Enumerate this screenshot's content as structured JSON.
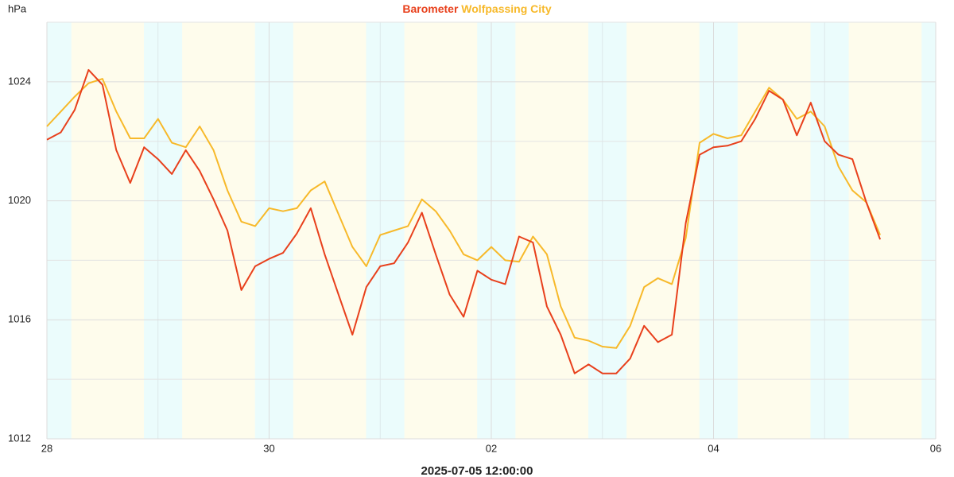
{
  "chart_data": {
    "type": "line",
    "title_prefix_unit": "hPa",
    "footer": "2025-07-05 12:00:00",
    "x": [
      0,
      0.125,
      0.25,
      0.375,
      0.5,
      0.625,
      0.75,
      0.875,
      1,
      1.125,
      1.25,
      1.375,
      1.5,
      1.625,
      1.75,
      1.875,
      2,
      2.125,
      2.25,
      2.375,
      2.5,
      2.625,
      2.75,
      2.875,
      3,
      3.125,
      3.25,
      3.375,
      3.5,
      3.625,
      3.75,
      3.875,
      4,
      4.125,
      4.25,
      4.375,
      4.5,
      4.625,
      4.75,
      4.875,
      5,
      5.125,
      5.25,
      5.375,
      5.5,
      5.625,
      5.75,
      5.875,
      6,
      6.125,
      6.25,
      6.375,
      6.5,
      6.625,
      6.75,
      6.875,
      7,
      7.125,
      7.25,
      7.375,
      7.5
    ],
    "series": [
      {
        "name": "Barometer",
        "color": "#e8401c",
        "values": [
          1022.05,
          1022.3,
          1023.05,
          1024.4,
          1023.9,
          1021.7,
          1020.6,
          1021.8,
          1021.4,
          1020.9,
          1021.7,
          1021.0,
          1020.05,
          1019.0,
          1017.0,
          1017.8,
          1018.05,
          1018.25,
          1018.9,
          1019.75,
          1018.2,
          1016.85,
          1015.5,
          1017.1,
          1017.8,
          1017.9,
          1018.6,
          1019.6,
          1018.2,
          1016.85,
          1016.1,
          1017.65,
          1017.35,
          1017.2,
          1018.8,
          1018.6,
          1016.45,
          1015.5,
          1014.2,
          1014.5,
          1014.2,
          1014.2,
          1014.7,
          1015.8,
          1015.25,
          1015.5,
          1019.25,
          1021.55,
          1021.8,
          1021.85,
          1022.0,
          1022.75,
          1023.7,
          1023.4,
          1022.2,
          1023.3,
          1022.0,
          1021.55,
          1021.4,
          1019.95,
          1018.7
        ]
      },
      {
        "name": "Wolfpassing City",
        "color": "#f7b92a",
        "values": [
          1022.5,
          1023.0,
          1023.5,
          1023.95,
          1024.1,
          1023.0,
          1022.1,
          1022.1,
          1022.75,
          1021.95,
          1021.8,
          1022.5,
          1021.7,
          1020.35,
          1019.3,
          1019.15,
          1019.75,
          1019.65,
          1019.75,
          1020.35,
          1020.65,
          1019.55,
          1018.45,
          1017.8,
          1018.85,
          1019.0,
          1019.15,
          1020.05,
          1019.65,
          1019.0,
          1018.2,
          1018.0,
          1018.45,
          1018.0,
          1017.95,
          1018.8,
          1018.2,
          1016.45,
          1015.4,
          1015.3,
          1015.1,
          1015.05,
          1015.8,
          1017.1,
          1017.4,
          1017.2,
          1018.75,
          1021.95,
          1022.25,
          1022.1,
          1022.2,
          1023.0,
          1023.8,
          1023.4,
          1022.75,
          1023.0,
          1022.5,
          1021.15,
          1020.35,
          1019.95,
          1018.85
        ]
      }
    ],
    "xlim": [
      0,
      8
    ],
    "xticks": [
      {
        "value": 0,
        "label": "28"
      },
      {
        "value": 2,
        "label": "30"
      },
      {
        "value": 4,
        "label": "02"
      },
      {
        "value": 6,
        "label": "04"
      },
      {
        "value": 8,
        "label": "06"
      }
    ],
    "xminor_ticks": [
      1,
      3,
      5,
      7
    ],
    "ylim": [
      1012,
      1026
    ],
    "yticks": [
      1012,
      1016,
      1020,
      1024
    ],
    "yminor_ticks": [
      1014,
      1018,
      1022,
      1026
    ],
    "grid": true,
    "night_bands": [
      [
        0,
        0.22
      ],
      [
        0.873,
        1.217
      ],
      [
        1.873,
        2.217
      ],
      [
        2.873,
        3.217
      ],
      [
        3.873,
        4.217
      ],
      [
        4.873,
        5.217
      ],
      [
        5.873,
        6.217
      ],
      [
        6.873,
        7.217
      ],
      [
        7.873,
        8
      ]
    ],
    "night_color": "#ebfcfc",
    "day_color": "#fefcec"
  }
}
